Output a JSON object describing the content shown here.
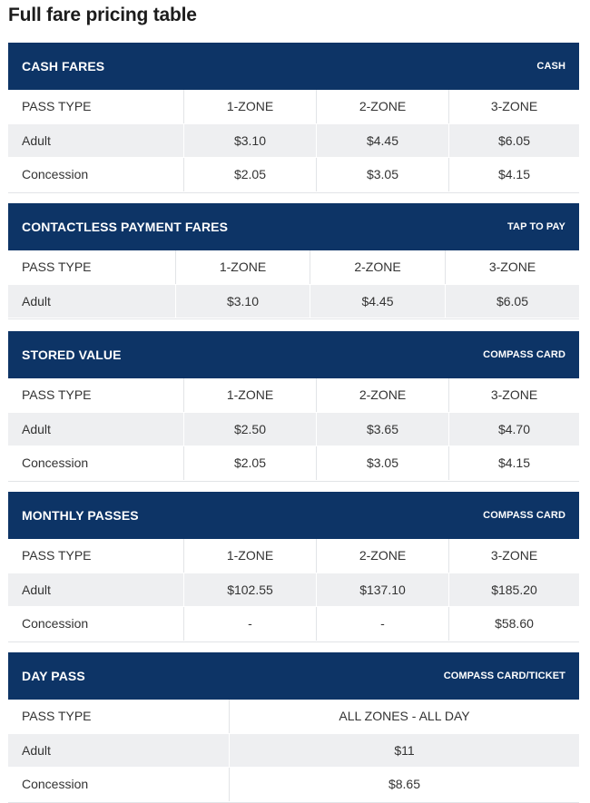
{
  "page": {
    "title": "Full fare pricing table"
  },
  "tables": [
    {
      "title": "CASH FARES",
      "tag": "CASH",
      "columns": [
        "PASS TYPE",
        "1-ZONE",
        "2-ZONE",
        "3-ZONE"
      ],
      "rows": [
        [
          "Adult",
          "$3.10",
          "$4.45",
          "$6.05"
        ],
        [
          "Concession",
          "$2.05",
          "$3.05",
          "$4.15"
        ]
      ]
    },
    {
      "title": "CONTACTLESS PAYMENT FARES",
      "tag": "TAP TO PAY",
      "columns": [
        "PASS TYPE",
        "1-ZONE",
        "2-ZONE",
        "3-ZONE"
      ],
      "rows": [
        [
          "Adult",
          "$3.10",
          "$4.45",
          "$6.05"
        ]
      ]
    },
    {
      "title": "STORED VALUE",
      "tag": "COMPASS CARD",
      "columns": [
        "PASS TYPE",
        "1-ZONE",
        "2-ZONE",
        "3-ZONE"
      ],
      "rows": [
        [
          "Adult",
          "$2.50",
          "$3.65",
          "$4.70"
        ],
        [
          "Concession",
          "$2.05",
          "$3.05",
          "$4.15"
        ]
      ]
    },
    {
      "title": "MONTHLY PASSES",
      "tag": "COMPASS CARD",
      "columns": [
        "PASS TYPE",
        "1-ZONE",
        "2-ZONE",
        "3-ZONE"
      ],
      "rows": [
        [
          "Adult",
          "$102.55",
          "$137.10",
          "$185.20"
        ],
        [
          "Concession",
          "-",
          "-",
          "$58.60"
        ]
      ]
    },
    {
      "title": "DAY PASS",
      "tag": "COMPASS CARD/TICKET",
      "columns": [
        "PASS TYPE",
        "ALL ZONES - ALL DAY"
      ],
      "rows": [
        [
          "Adult",
          "$11"
        ],
        [
          "Concession",
          "$8.65"
        ]
      ]
    }
  ]
}
